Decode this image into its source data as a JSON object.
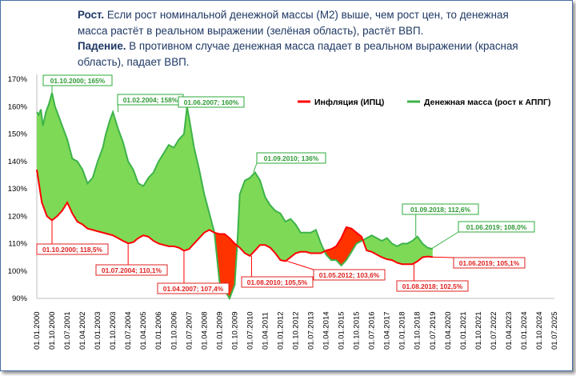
{
  "description": {
    "growth_title": "Рост.",
    "growth_text": "Если рост номинальной денежной массы (М2) выше, чем рост цен, то денежная масса растёт в реальном выражении (зелёная область), растёт ВВП.",
    "fall_title": "Падение.",
    "fall_text": "В противном случае денежная масса падает в реальном выражении (красная область), падает ВВП."
  },
  "colors": {
    "green_line": "#3db349",
    "green_fill": "#7ed957",
    "red_line": "#ff0000",
    "red_fill": "#ff3300"
  },
  "chart_data": {
    "type": "area",
    "xlabel": "",
    "ylabel": "",
    "ylim": [
      90,
      170
    ],
    "y_ticks": [
      "170%",
      "160%",
      "150%",
      "140%",
      "130%",
      "120%",
      "110%",
      "100%",
      "90%"
    ],
    "x_ticks": [
      "01.01.2000",
      "01.10.2000",
      "01.07.2001",
      "01.04.2002",
      "01.01.2003",
      "01.10.2003",
      "01.07.2004",
      "01.04.2005",
      "01.01.2006",
      "01.10.2006",
      "01.07.2007",
      "01.04.2008",
      "01.01.2009",
      "01.10.2009",
      "01.07.2010",
      "01.04.2011",
      "01.01.2012",
      "01.10.2012",
      "01.07.2013",
      "01.04.2014",
      "01.01.2015",
      "01.10.2015",
      "01.07.2016",
      "01.04.2017",
      "01.01.2018",
      "01.10.2018",
      "01.07.2019",
      "01.04.2020",
      "01.01.2021",
      "01.10.2021",
      "01.07.2022",
      "01.04.2023",
      "01.01.2024",
      "01.10.2024",
      "01.07.2025"
    ],
    "legend": [
      "Инфляция (ИПЦ)",
      "Денежная масса (рост к АППГ)"
    ],
    "legend_position": "top-right",
    "series": [
      {
        "name": "Инфляция (ИПЦ)",
        "points": [
          [
            2000.0,
            137
          ],
          [
            2000.25,
            125
          ],
          [
            2000.5,
            120
          ],
          [
            2000.75,
            118.5
          ],
          [
            2001.0,
            120
          ],
          [
            2001.25,
            122
          ],
          [
            2001.5,
            125
          ],
          [
            2001.75,
            121
          ],
          [
            2002.0,
            118
          ],
          [
            2002.25,
            117
          ],
          [
            2002.5,
            115.5
          ],
          [
            2002.75,
            115
          ],
          [
            2003.0,
            114.5
          ],
          [
            2003.25,
            114
          ],
          [
            2003.5,
            113.5
          ],
          [
            2003.75,
            113
          ],
          [
            2004.0,
            112
          ],
          [
            2004.25,
            111
          ],
          [
            2004.5,
            110.1
          ],
          [
            2004.75,
            110.5
          ],
          [
            2005.0,
            112
          ],
          [
            2005.25,
            113
          ],
          [
            2005.5,
            112.5
          ],
          [
            2005.75,
            111
          ],
          [
            2006.0,
            110
          ],
          [
            2006.25,
            109.5
          ],
          [
            2006.5,
            109
          ],
          [
            2006.75,
            109
          ],
          [
            2007.0,
            108.5
          ],
          [
            2007.25,
            107.4
          ],
          [
            2007.5,
            108
          ],
          [
            2007.75,
            110
          ],
          [
            2008.0,
            112
          ],
          [
            2008.25,
            114
          ],
          [
            2008.5,
            115
          ],
          [
            2008.75,
            114
          ],
          [
            2009.0,
            113.5
          ],
          [
            2009.25,
            113.5
          ],
          [
            2009.5,
            112
          ],
          [
            2009.75,
            110
          ],
          [
            2010.0,
            108.5
          ],
          [
            2010.25,
            106.5
          ],
          [
            2010.5,
            105.5
          ],
          [
            2010.75,
            107.5
          ],
          [
            2011.0,
            109.5
          ],
          [
            2011.25,
            109.5
          ],
          [
            2011.5,
            108.5
          ],
          [
            2011.75,
            106.5
          ],
          [
            2012.0,
            104
          ],
          [
            2012.25,
            103.6
          ],
          [
            2012.5,
            105
          ],
          [
            2012.75,
            106.5
          ],
          [
            2013.0,
            107
          ],
          [
            2013.25,
            107
          ],
          [
            2013.5,
            106.5
          ],
          [
            2013.75,
            106.5
          ],
          [
            2014.0,
            106.5
          ],
          [
            2014.25,
            107.5
          ],
          [
            2014.5,
            108
          ],
          [
            2014.75,
            109
          ],
          [
            2015.0,
            112
          ],
          [
            2015.25,
            116
          ],
          [
            2015.5,
            115.5
          ],
          [
            2015.75,
            114
          ],
          [
            2016.0,
            112.5
          ],
          [
            2016.25,
            107.5
          ],
          [
            2016.5,
            107
          ],
          [
            2016.75,
            106
          ],
          [
            2017.0,
            105
          ],
          [
            2017.25,
            104.3
          ],
          [
            2017.5,
            104
          ],
          [
            2017.75,
            103
          ],
          [
            2018.0,
            102.5
          ],
          [
            2018.25,
            102.5
          ],
          [
            2018.5,
            102.5
          ],
          [
            2018.75,
            103.5
          ],
          [
            2019.0,
            105
          ],
          [
            2019.25,
            105.3
          ],
          [
            2019.5,
            105.1
          ]
        ]
      },
      {
        "name": "Денежная масса (рост к АППГ)",
        "points": [
          [
            2000.0,
            158
          ],
          [
            2000.1,
            157
          ],
          [
            2000.2,
            159
          ],
          [
            2000.3,
            153
          ],
          [
            2000.45,
            158
          ],
          [
            2000.6,
            161
          ],
          [
            2000.75,
            165
          ],
          [
            2000.9,
            160
          ],
          [
            2001.0,
            158
          ],
          [
            2001.25,
            153
          ],
          [
            2001.5,
            148
          ],
          [
            2001.75,
            141
          ],
          [
            2002.0,
            140
          ],
          [
            2002.25,
            137
          ],
          [
            2002.5,
            132
          ],
          [
            2002.75,
            134
          ],
          [
            2003.0,
            140
          ],
          [
            2003.25,
            145
          ],
          [
            2003.4,
            150
          ],
          [
            2003.6,
            155
          ],
          [
            2003.75,
            158
          ],
          [
            2004.0,
            152
          ],
          [
            2004.25,
            147
          ],
          [
            2004.5,
            140
          ],
          [
            2004.75,
            137
          ],
          [
            2005.0,
            132
          ],
          [
            2005.25,
            131
          ],
          [
            2005.5,
            134
          ],
          [
            2005.75,
            136
          ],
          [
            2006.0,
            140
          ],
          [
            2006.25,
            143
          ],
          [
            2006.5,
            146
          ],
          [
            2006.75,
            145
          ],
          [
            2007.0,
            148
          ],
          [
            2007.25,
            150
          ],
          [
            2007.4,
            160
          ],
          [
            2007.5,
            156
          ],
          [
            2007.75,
            145
          ],
          [
            2008.0,
            137
          ],
          [
            2008.25,
            128
          ],
          [
            2008.5,
            121
          ],
          [
            2008.75,
            114
          ],
          [
            2009.0,
            96
          ],
          [
            2009.25,
            93
          ],
          [
            2009.5,
            90
          ],
          [
            2009.75,
            95
          ],
          [
            2009.9,
            113
          ],
          [
            2010.0,
            128
          ],
          [
            2010.25,
            133
          ],
          [
            2010.5,
            134
          ],
          [
            2010.75,
            136
          ],
          [
            2011.0,
            133
          ],
          [
            2011.25,
            127
          ],
          [
            2011.5,
            124
          ],
          [
            2011.75,
            122
          ],
          [
            2012.0,
            121
          ],
          [
            2012.25,
            118
          ],
          [
            2012.5,
            119
          ],
          [
            2012.75,
            117
          ],
          [
            2013.0,
            114
          ],
          [
            2013.25,
            114
          ],
          [
            2013.5,
            114
          ],
          [
            2013.75,
            115
          ],
          [
            2014.0,
            110
          ],
          [
            2014.25,
            106
          ],
          [
            2014.5,
            104
          ],
          [
            2014.75,
            104
          ],
          [
            2015.0,
            102
          ],
          [
            2015.25,
            104
          ],
          [
            2015.5,
            107
          ],
          [
            2015.75,
            110
          ],
          [
            2016.0,
            111
          ],
          [
            2016.25,
            112
          ],
          [
            2016.5,
            113
          ],
          [
            2016.75,
            112
          ],
          [
            2017.0,
            111
          ],
          [
            2017.25,
            112
          ],
          [
            2017.5,
            110
          ],
          [
            2017.75,
            109
          ],
          [
            2018.0,
            110
          ],
          [
            2018.25,
            110
          ],
          [
            2018.5,
            111
          ],
          [
            2018.75,
            112.6
          ],
          [
            2019.0,
            110
          ],
          [
            2019.25,
            108.5
          ],
          [
            2019.5,
            108.0
          ]
        ]
      }
    ],
    "annotations": [
      {
        "series": "Денежная масса (рост к АППГ)",
        "x": 2000.75,
        "y": 165,
        "text": "01.10.2000; 165%"
      },
      {
        "series": "Денежная масса (рост к АППГ)",
        "x": 2004.0,
        "y": 158,
        "text": "01.02.2004; 158%"
      },
      {
        "series": "Денежная масса (рост к АППГ)",
        "x": 2007.4,
        "y": 160,
        "text": "01.06.2007; 160%"
      },
      {
        "series": "Денежная масса (рост к АППГ)",
        "x": 2010.67,
        "y": 136,
        "text": "01.09.2010; 136%"
      },
      {
        "series": "Денежная масса (рост к АППГ)",
        "x": 2018.67,
        "y": 112.6,
        "text": "01.09.2018; 112,6%"
      },
      {
        "series": "Денежная масса (рост к АППГ)",
        "x": 2019.42,
        "y": 108.0,
        "text": "01.06.2019; 108,0%"
      },
      {
        "series": "Инфляция (ИПЦ)",
        "x": 2000.75,
        "y": 118.5,
        "text": "01.10.2000; 118,5%"
      },
      {
        "series": "Инфляция (ИПЦ)",
        "x": 2004.5,
        "y": 110.1,
        "text": "01.07.2004; 110,1%"
      },
      {
        "series": "Инфляция (ИПЦ)",
        "x": 2007.25,
        "y": 107.4,
        "text": "01.04.2007; 107,4%"
      },
      {
        "series": "Инфляция (ИПЦ)",
        "x": 2010.58,
        "y": 105.5,
        "text": "01.08.2010; 105,5%"
      },
      {
        "series": "Инфляция (ИПЦ)",
        "x": 2012.33,
        "y": 103.6,
        "text": "01.05.2012; 103,6%"
      },
      {
        "series": "Инфляция (ИПЦ)",
        "x": 2018.58,
        "y": 102.5,
        "text": "01.08.2018; 102,5%"
      },
      {
        "series": "Инфляция (ИПЦ)",
        "x": 2019.42,
        "y": 105.1,
        "text": "01.06.2019; 105,1%"
      }
    ]
  }
}
